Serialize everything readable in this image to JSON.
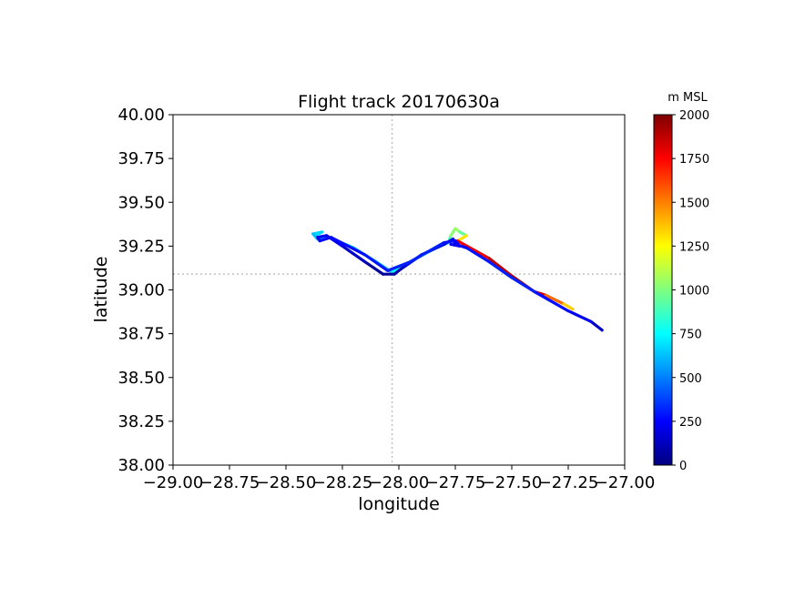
{
  "chart_data": {
    "type": "line",
    "title": "Flight track 20170630a",
    "xlabel": "longitude",
    "ylabel": "latitude",
    "xlim": [
      -29.0,
      -27.0
    ],
    "ylim": [
      38.0,
      40.0
    ],
    "xticks": [
      -29.0,
      -28.75,
      -28.5,
      -28.25,
      -28.0,
      -27.75,
      -27.5,
      -27.25,
      -27.0
    ],
    "xtick_labels": [
      "−29.00",
      "−28.75",
      "−28.50",
      "−28.25",
      "−28.00",
      "−27.75",
      "−27.50",
      "−27.25",
      "−27.00"
    ],
    "yticks": [
      38.0,
      38.25,
      38.5,
      38.75,
      39.0,
      39.25,
      39.5,
      39.75,
      40.0
    ],
    "ytick_labels": [
      "38.00",
      "38.25",
      "38.50",
      "38.75",
      "39.00",
      "39.25",
      "39.50",
      "39.75",
      "40.00"
    ],
    "reference_lines": {
      "longitude": -28.03,
      "latitude": 39.09
    },
    "colorbar": {
      "label": "m MSL",
      "range": [
        0,
        2000
      ],
      "ticks": [
        0,
        250,
        500,
        750,
        1000,
        1250,
        1500,
        1750,
        2000
      ],
      "tick_labels": [
        "0",
        "250",
        "500",
        "750",
        "1000",
        "1250",
        "1500",
        "1750",
        "2000"
      ],
      "colormap": "jet"
    },
    "series": [
      {
        "values": [
          {
            "lon": -28.37,
            "lat": 39.31,
            "alt": 700
          },
          {
            "lon": -28.34,
            "lat": 39.33,
            "alt": 680
          },
          {
            "lon": -28.38,
            "lat": 39.32,
            "alt": 650
          },
          {
            "lon": -28.36,
            "lat": 39.29,
            "alt": 600
          },
          {
            "lon": -28.31,
            "lat": 39.3,
            "alt": 620
          },
          {
            "lon": -28.2,
            "lat": 39.24,
            "alt": 600
          },
          {
            "lon": -28.1,
            "lat": 39.16,
            "alt": 550
          },
          {
            "lon": -28.03,
            "lat": 39.1,
            "alt": 700
          },
          {
            "lon": -27.95,
            "lat": 39.16,
            "alt": 800
          },
          {
            "lon": -27.85,
            "lat": 39.23,
            "alt": 850
          },
          {
            "lon": -27.78,
            "lat": 39.27,
            "alt": 800
          },
          {
            "lon": -27.77,
            "lat": 39.31,
            "alt": 950
          },
          {
            "lon": -27.75,
            "lat": 39.35,
            "alt": 1100
          },
          {
            "lon": -27.73,
            "lat": 39.33,
            "alt": 1000
          },
          {
            "lon": -27.7,
            "lat": 39.31,
            "alt": 900
          },
          {
            "lon": -27.74,
            "lat": 39.28,
            "alt": 1700
          },
          {
            "lon": -27.6,
            "lat": 39.18,
            "alt": 1850
          },
          {
            "lon": -27.5,
            "lat": 39.08,
            "alt": 1900
          },
          {
            "lon": -27.4,
            "lat": 38.99,
            "alt": 1950
          },
          {
            "lon": -27.35,
            "lat": 38.97,
            "alt": 1700
          },
          {
            "lon": -27.27,
            "lat": 38.92,
            "alt": 1400
          },
          {
            "lon": -27.23,
            "lat": 38.89,
            "alt": 1300
          }
        ]
      },
      {
        "values": [
          {
            "lon": -27.1,
            "lat": 38.77,
            "alt": 80
          },
          {
            "lon": -27.15,
            "lat": 38.82,
            "alt": 200
          },
          {
            "lon": -27.25,
            "lat": 38.88,
            "alt": 250
          },
          {
            "lon": -27.4,
            "lat": 38.99,
            "alt": 300
          },
          {
            "lon": -27.5,
            "lat": 39.07,
            "alt": 320
          },
          {
            "lon": -27.6,
            "lat": 39.16,
            "alt": 300
          },
          {
            "lon": -27.7,
            "lat": 39.24,
            "alt": 280
          },
          {
            "lon": -27.75,
            "lat": 39.26,
            "alt": 250
          },
          {
            "lon": -27.76,
            "lat": 39.29,
            "alt": 200
          },
          {
            "lon": -27.8,
            "lat": 39.26,
            "alt": 150
          },
          {
            "lon": -27.9,
            "lat": 39.2,
            "alt": 180
          },
          {
            "lon": -27.99,
            "lat": 39.12,
            "alt": 120
          },
          {
            "lon": -28.02,
            "lat": 39.09,
            "alt": 60
          },
          {
            "lon": -28.07,
            "lat": 39.09,
            "alt": 40
          },
          {
            "lon": -28.15,
            "lat": 39.16,
            "alt": 80
          },
          {
            "lon": -28.25,
            "lat": 39.25,
            "alt": 200
          },
          {
            "lon": -28.32,
            "lat": 39.31,
            "alt": 250
          },
          {
            "lon": -28.36,
            "lat": 39.3,
            "alt": 200
          },
          {
            "lon": -28.35,
            "lat": 39.28,
            "alt": 220
          },
          {
            "lon": -28.3,
            "lat": 39.3,
            "alt": 250
          },
          {
            "lon": -28.15,
            "lat": 39.2,
            "alt": 280
          },
          {
            "lon": -28.05,
            "lat": 39.11,
            "alt": 300
          },
          {
            "lon": -27.95,
            "lat": 39.16,
            "alt": 320
          },
          {
            "lon": -27.8,
            "lat": 39.27,
            "alt": 300
          },
          {
            "lon": -27.75,
            "lat": 39.28,
            "alt": 260
          },
          {
            "lon": -27.73,
            "lat": 39.25,
            "alt": 240
          },
          {
            "lon": -27.77,
            "lat": 39.26,
            "alt": 220
          }
        ]
      }
    ]
  }
}
